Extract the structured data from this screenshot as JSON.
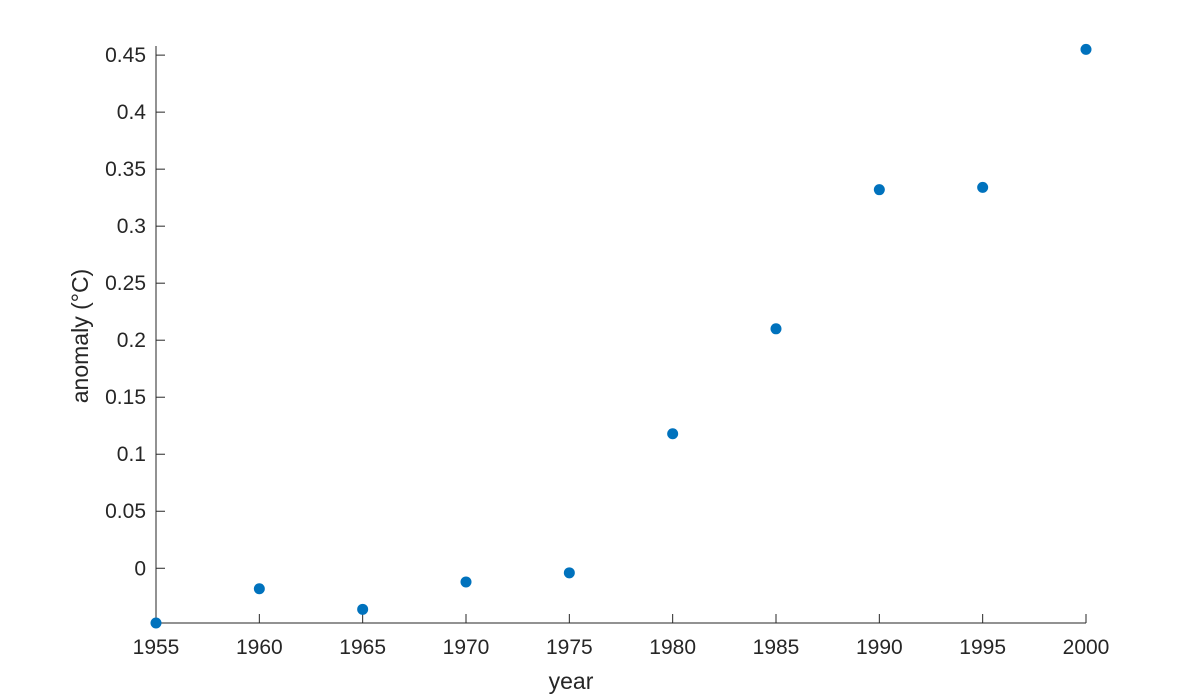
{
  "chart_data": {
    "type": "scatter",
    "title": "",
    "xlabel": "year",
    "ylabel": "anomaly (°C)",
    "xlim": [
      1955,
      2000
    ],
    "ylim": [
      -0.048,
      0.458
    ],
    "x_ticks": [
      1955,
      1960,
      1965,
      1970,
      1975,
      1980,
      1985,
      1990,
      1995,
      2000
    ],
    "x_tick_labels": [
      "1955",
      "1960",
      "1965",
      "1970",
      "1975",
      "1980",
      "1985",
      "1990",
      "1995",
      "2000"
    ],
    "y_ticks": [
      0,
      0.05,
      0.1,
      0.15,
      0.2,
      0.25,
      0.3,
      0.35,
      0.4,
      0.45
    ],
    "y_tick_labels": [
      "0",
      "0.05",
      "0.1",
      "0.15",
      "0.2",
      "0.25",
      "0.3",
      "0.35",
      "0.4",
      "0.45"
    ],
    "grid": false,
    "marker_color": "#0072BD",
    "series": [
      {
        "x": [
          1955,
          1960,
          1965,
          1970,
          1975,
          1980,
          1985,
          1990,
          1995,
          2000
        ],
        "y": [
          -0.048,
          -0.018,
          -0.036,
          -0.012,
          -0.004,
          0.118,
          0.21,
          0.332,
          0.334,
          0.455
        ]
      }
    ]
  }
}
